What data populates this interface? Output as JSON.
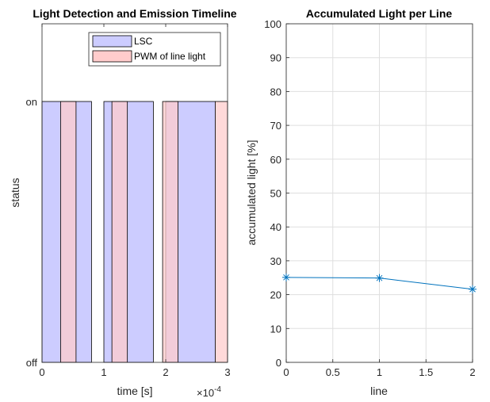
{
  "chart_data": [
    {
      "type": "timeline",
      "title": "Light Detection and Emission Timeline",
      "xlabel": "time [s]",
      "ylabel": "status",
      "x_exponent_label": "×10",
      "x_exponent_power": "-4",
      "xlim": [
        0,
        3
      ],
      "x_scale": 0.0001,
      "x_ticks": [
        "0",
        "1",
        "2",
        "3"
      ],
      "y_ticks": [
        "off",
        "on"
      ],
      "grid": false,
      "legend_position": "top-right",
      "series": [
        {
          "name": "LSC",
          "color": "#ccccff",
          "intervals": [
            [
              0.0,
              0.8
            ],
            [
              1.0,
              1.8
            ],
            [
              2.0,
              2.8
            ]
          ]
        },
        {
          "name": "PWM of line light",
          "color": "#ffcccc",
          "intervals": [
            [
              0.3,
              0.55
            ],
            [
              1.13,
              1.38
            ],
            [
              1.95,
              2.2
            ],
            [
              2.8,
              3.0
            ]
          ]
        }
      ]
    },
    {
      "type": "line",
      "title": "Accumulated Light per Line",
      "xlabel": "line",
      "ylabel": "accumulated light [%]",
      "xlim": [
        0,
        2
      ],
      "ylim": [
        0,
        100
      ],
      "x_ticks": [
        "0",
        "0.5",
        "1",
        "1.5",
        "2"
      ],
      "y_ticks": [
        "0",
        "10",
        "20",
        "30",
        "40",
        "50",
        "60",
        "70",
        "80",
        "90",
        "100"
      ],
      "grid": true,
      "color": "#0072bd",
      "x": [
        0,
        1,
        2
      ],
      "y": [
        25.1,
        24.9,
        21.6
      ]
    }
  ]
}
